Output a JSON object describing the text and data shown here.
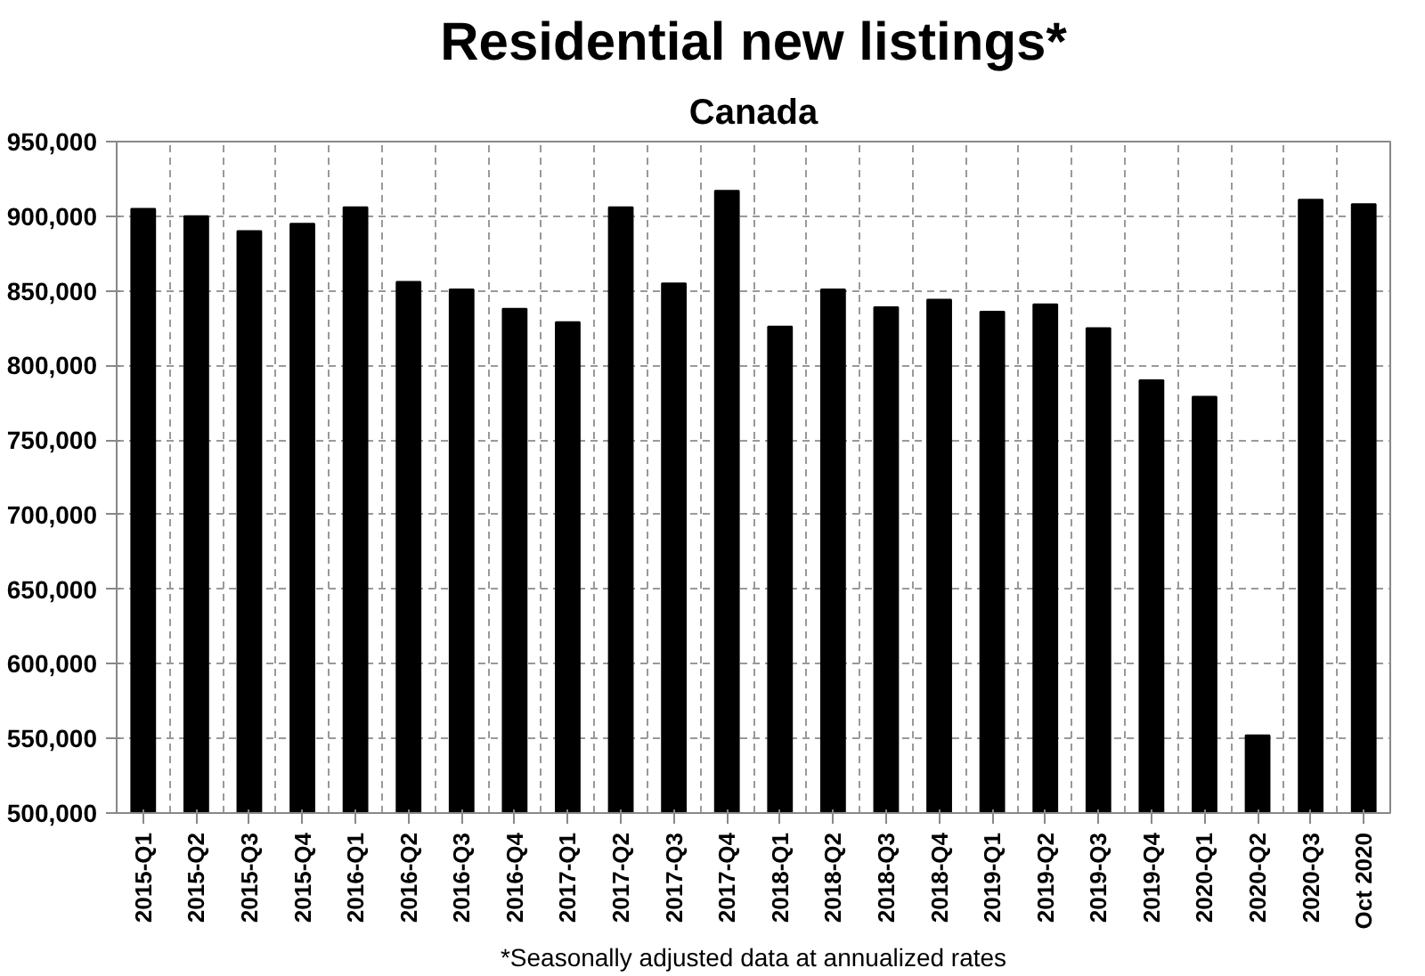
{
  "chart_data": {
    "type": "bar",
    "title": "Residential new listings*",
    "subtitle": "Canada",
    "categories": [
      "2015-Q1",
      "2015-Q2",
      "2015-Q3",
      "2015-Q4",
      "2016-Q1",
      "2016-Q2",
      "2016-Q3",
      "2016-Q4",
      "2017-Q1",
      "2017-Q2",
      "2017-Q3",
      "2017-Q4",
      "2018-Q1",
      "2018-Q2",
      "2018-Q3",
      "2018-Q4",
      "2019-Q1",
      "2019-Q2",
      "2019-Q3",
      "2019-Q4",
      "2020-Q1",
      "2020-Q2",
      "2020-Q3",
      "Oct 2020"
    ],
    "values": [
      905000,
      900000,
      890000,
      895000,
      906000,
      856000,
      851000,
      838000,
      829000,
      906000,
      855000,
      917000,
      826000,
      851000,
      839000,
      844000,
      836000,
      841000,
      825000,
      790000,
      779000,
      552000,
      911000,
      908000
    ],
    "color": "#000000",
    "ylim": [
      500000,
      950000
    ],
    "yticks": [
      {
        "value": 500000,
        "label": "500,000"
      },
      {
        "value": 550000,
        "label": "550,000"
      },
      {
        "value": 600000,
        "label": "600,000"
      },
      {
        "value": 650000,
        "label": "650,000"
      },
      {
        "value": 700000,
        "label": "700,000"
      },
      {
        "value": 750000,
        "label": "750,000"
      },
      {
        "value": 800000,
        "label": "800,000"
      },
      {
        "value": 850000,
        "label": "850,000"
      },
      {
        "value": 900000,
        "label": "900,000"
      },
      {
        "value": 950000,
        "label": "950,000"
      }
    ],
    "grid": true,
    "annotations": [
      "*Seasonally adjusted data at annualized rates"
    ]
  }
}
